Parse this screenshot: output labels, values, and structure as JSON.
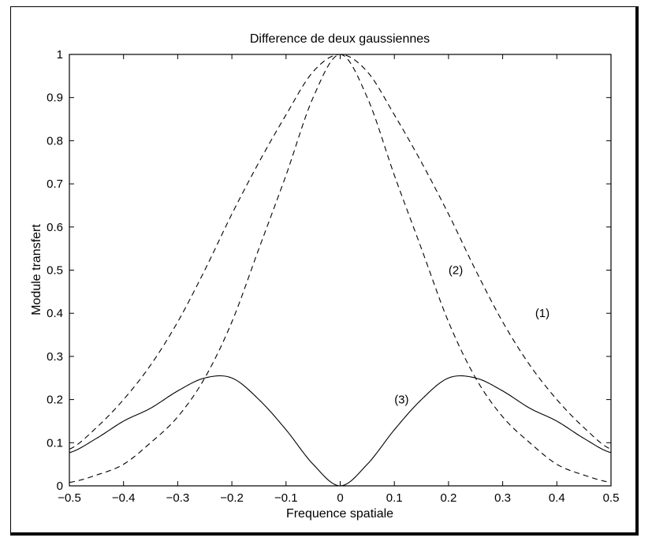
{
  "chart_data": {
    "type": "line",
    "title": "Difference de deux gaussiennes",
    "xlabel": "Frequence spatiale",
    "ylabel": "Module transfert",
    "xlim": [
      -0.5,
      0.5
    ],
    "ylim": [
      0,
      1
    ],
    "grid": false,
    "xticks": [
      "−0.5",
      "−0.4",
      "−0.3",
      "−0.2",
      "−0.1",
      "0",
      "0.1",
      "0.2",
      "0.3",
      "0.4",
      "0.5"
    ],
    "yticks": [
      "0",
      "0.1",
      "0.2",
      "0.3",
      "0.4",
      "0.5",
      "0.6",
      "0.7",
      "0.8",
      "0.9",
      "1"
    ],
    "x": [
      -0.5,
      -0.45,
      -0.4,
      -0.35,
      -0.3,
      -0.25,
      -0.2,
      -0.15,
      -0.1,
      -0.05,
      0,
      0.05,
      0.1,
      0.15,
      0.2,
      0.25,
      0.3,
      0.35,
      0.4,
      0.45,
      0.5
    ],
    "series": [
      {
        "name": "(1)",
        "style": "dashed",
        "values": [
          0.085,
          0.135,
          0.2,
          0.28,
          0.38,
          0.5,
          0.63,
          0.75,
          0.86,
          0.96,
          1.0,
          0.96,
          0.86,
          0.75,
          0.63,
          0.5,
          0.38,
          0.28,
          0.2,
          0.135,
          0.085
        ]
      },
      {
        "name": "(2)",
        "style": "dashed",
        "values": [
          0.008,
          0.025,
          0.05,
          0.1,
          0.16,
          0.25,
          0.38,
          0.55,
          0.72,
          0.9,
          1.0,
          0.9,
          0.72,
          0.55,
          0.38,
          0.25,
          0.16,
          0.1,
          0.05,
          0.025,
          0.008
        ]
      },
      {
        "name": "(3)",
        "style": "solid",
        "values": [
          0.077,
          0.11,
          0.15,
          0.18,
          0.22,
          0.25,
          0.25,
          0.2,
          0.13,
          0.05,
          0.0,
          0.05,
          0.13,
          0.2,
          0.25,
          0.25,
          0.22,
          0.18,
          0.15,
          0.11,
          0.077
        ]
      }
    ],
    "annotations": [
      {
        "text": "(1)",
        "x": 0.36,
        "y": 0.4
      },
      {
        "text": "(2)",
        "x": 0.2,
        "y": 0.5
      },
      {
        "text": "(3)",
        "x": 0.1,
        "y": 0.2
      }
    ]
  }
}
